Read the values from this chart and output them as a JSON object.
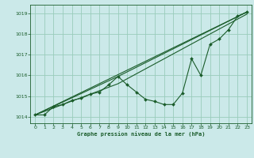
{
  "background_color": "#cbe9e9",
  "plot_bg_color": "#cbe9e9",
  "grid_color": "#99ccbb",
  "line_color": "#1a5c2a",
  "title": "Graphe pression niveau de la mer (hPa)",
  "xlim": [
    -0.5,
    23.5
  ],
  "ylim": [
    1013.7,
    1019.4
  ],
  "yticks": [
    1014,
    1015,
    1016,
    1017,
    1018,
    1019
  ],
  "xticks": [
    0,
    1,
    2,
    3,
    4,
    5,
    6,
    7,
    8,
    9,
    10,
    11,
    12,
    13,
    14,
    15,
    16,
    17,
    18,
    19,
    20,
    21,
    22,
    23
  ],
  "line1_x": [
    0,
    1,
    2,
    3,
    4,
    5,
    6,
    7,
    8,
    9,
    10,
    11,
    12,
    13,
    14,
    15,
    16,
    17,
    18,
    19,
    20,
    21,
    22,
    23
  ],
  "line1_y": [
    1014.1,
    1014.1,
    1014.5,
    1014.6,
    1014.8,
    1014.9,
    1015.1,
    1015.2,
    1015.55,
    1015.95,
    1015.55,
    1015.2,
    1014.85,
    1014.75,
    1014.6,
    1014.6,
    1015.15,
    1016.8,
    1016.0,
    1017.5,
    1017.75,
    1018.2,
    1018.85,
    1019.05
  ],
  "line2_x": [
    0,
    23
  ],
  "line2_y": [
    1014.1,
    1019.05
  ],
  "line3_x": [
    0,
    9,
    23
  ],
  "line3_y": [
    1014.1,
    1015.95,
    1019.05
  ],
  "line4_x": [
    0,
    9,
    23
  ],
  "line4_y": [
    1014.1,
    1015.6,
    1018.95
  ]
}
